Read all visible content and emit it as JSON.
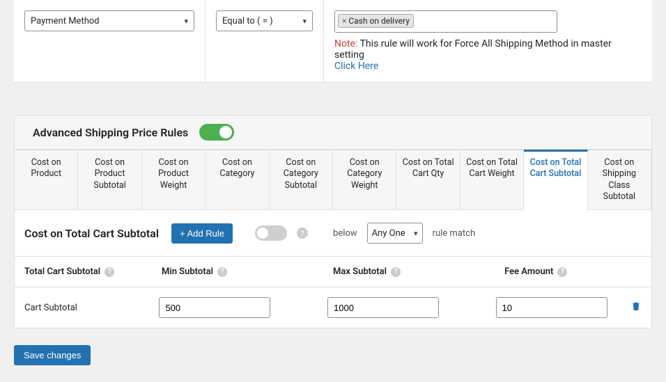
{
  "condition_row": {
    "field_select": "Payment Method",
    "operator_select": "Equal to ( = )",
    "tag_label": "Cash on delivery",
    "note_label": "Note:",
    "note_text": "This rule will work for Force All Shipping Method in master setting",
    "click_here": "Click Here"
  },
  "panel": {
    "title": "Advanced Shipping Price Rules",
    "enabled": true
  },
  "tabs": [
    "Cost on Product",
    "Cost on Product Subtotal",
    "Cost on Product Weight",
    "Cost on Category",
    "Cost on Category Subtotal",
    "Cost on Category Weight",
    "Cost on Total Cart Qty",
    "Cost on Total Cart Weight",
    "Cost on Total Cart Subtotal",
    "Cost on Shipping Class Subtotal"
  ],
  "active_tab": 8,
  "rule": {
    "title": "Cost on Total Cart Subtotal",
    "add_button": "+ Add Rule",
    "below_label": "below",
    "match_select": "Any One",
    "rule_match_label": "rule match"
  },
  "grid": {
    "headers": {
      "col1": "Total Cart Subtotal",
      "col2": "Min Subtotal",
      "col3": "Max Subtotal",
      "col4": "Fee Amount"
    },
    "row": {
      "label": "Cart Subtotal",
      "min": "500",
      "max": "1000",
      "fee": "10"
    }
  },
  "save_button": "Save changes",
  "colors": {
    "accent": "#2271b1",
    "green": "#4caf50",
    "border": "#e0e0e0",
    "bg": "#f0f0f1",
    "red": "#d63638"
  }
}
